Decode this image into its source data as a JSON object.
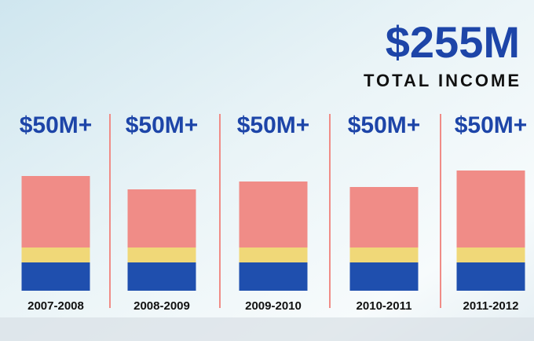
{
  "chart_data": {
    "type": "stacked_bar",
    "title": "$255M",
    "subtitle": "TOTAL INCOME",
    "categories": [
      "2007-2008",
      "2008-2009",
      "2009-2010",
      "2010-2011",
      "2011-2012"
    ],
    "column_labels": [
      "$50M+",
      "$50M+",
      "$50M+",
      "$50M+",
      "$50M+"
    ],
    "series": [
      {
        "color": "#1f4fae",
        "values": [
          36,
          36,
          36,
          36,
          36
        ]
      },
      {
        "color": "#f0d878",
        "values": [
          19,
          19,
          19,
          19,
          19
        ]
      },
      {
        "color": "#f08c87",
        "values": [
          91,
          74,
          84,
          77,
          98
        ]
      }
    ],
    "ylim": [
      0,
      160
    ]
  }
}
